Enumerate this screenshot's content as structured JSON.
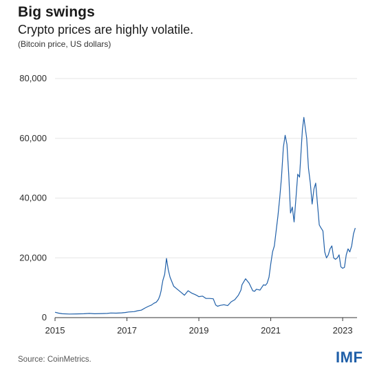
{
  "header": {
    "title": "Big swings",
    "subtitle": "Crypto prices are highly volatile.",
    "unit_note": "(Bitcoin price, US dollars)"
  },
  "footer": {
    "source": "Source: CoinMetrics.",
    "logo_text": "IMF"
  },
  "colors": {
    "line": "#1f5fa8",
    "grid": "#e6e6e6",
    "axis": "#333333",
    "logo": "#1f5fa8"
  },
  "chart_data": {
    "type": "line",
    "title": "Big swings",
    "subtitle": "Crypto prices are highly volatile.",
    "ylabel": "(Bitcoin price, US dollars)",
    "xlabel": "",
    "ylim": [
      0,
      80000
    ],
    "xlim": [
      2015.0,
      2023.4
    ],
    "grid": true,
    "yticks": [
      {
        "value": 0,
        "label": "0"
      },
      {
        "value": 20000,
        "label": "20,000"
      },
      {
        "value": 40000,
        "label": "40,000"
      },
      {
        "value": 60000,
        "label": "60,000"
      },
      {
        "value": 80000,
        "label": "80,000"
      }
    ],
    "xticks": [
      {
        "value": 2015,
        "label": "2015"
      },
      {
        "value": 2017,
        "label": "2017"
      },
      {
        "value": 2019,
        "label": "2019"
      },
      {
        "value": 2021,
        "label": "2021"
      },
      {
        "value": 2023,
        "label": "2023"
      }
    ],
    "series": [
      {
        "name": "Bitcoin price",
        "x": [
          2015.0,
          2015.1,
          2015.2,
          2015.4,
          2015.6,
          2015.8,
          2015.95,
          2016.1,
          2016.3,
          2016.45,
          2016.55,
          2016.7,
          2016.85,
          2016.95,
          2017.05,
          2017.2,
          2017.3,
          2017.4,
          2017.5,
          2017.6,
          2017.68,
          2017.75,
          2017.82,
          2017.88,
          2017.92,
          2017.95,
          2017.97,
          2018.0,
          2018.05,
          2018.1,
          2018.15,
          2018.2,
          2018.3,
          2018.4,
          2018.5,
          2018.6,
          2018.7,
          2018.8,
          2018.88,
          2018.95,
          2019.0,
          2019.1,
          2019.2,
          2019.3,
          2019.4,
          2019.47,
          2019.52,
          2019.6,
          2019.7,
          2019.8,
          2019.9,
          2020.0,
          2020.1,
          2020.17,
          2020.2,
          2020.3,
          2020.4,
          2020.5,
          2020.55,
          2020.6,
          2020.7,
          2020.8,
          2020.85,
          2020.9,
          2020.95,
          2021.0,
          2021.05,
          2021.1,
          2021.15,
          2021.2,
          2021.25,
          2021.3,
          2021.35,
          2021.4,
          2021.45,
          2021.5,
          2021.55,
          2021.6,
          2021.65,
          2021.7,
          2021.75,
          2021.8,
          2021.85,
          2021.88,
          2021.92,
          2022.0,
          2022.05,
          2022.1,
          2022.15,
          2022.2,
          2022.25,
          2022.3,
          2022.35,
          2022.4,
          2022.45,
          2022.5,
          2022.55,
          2022.6,
          2022.65,
          2022.7,
          2022.75,
          2022.8,
          2022.85,
          2022.9,
          2022.95,
          2023.0,
          2023.05,
          2023.1,
          2023.15,
          2023.2,
          2023.25,
          2023.3,
          2023.35
        ],
        "values": [
          1800,
          1500,
          1300,
          1200,
          1250,
          1300,
          1400,
          1300,
          1350,
          1400,
          1550,
          1500,
          1600,
          1700,
          1900,
          2000,
          2300,
          2500,
          3200,
          3800,
          4200,
          4800,
          5200,
          6200,
          7500,
          9000,
          10500,
          12500,
          14500,
          19800,
          16000,
          13500,
          10500,
          9500,
          8500,
          7500,
          9000,
          8200,
          7800,
          7400,
          7000,
          7200,
          6400,
          6400,
          6300,
          4200,
          3800,
          4100,
          4300,
          4000,
          5300,
          6000,
          7500,
          9200,
          11000,
          13000,
          11500,
          9000,
          8800,
          9500,
          9200,
          11000,
          10800,
          11500,
          13500,
          18000,
          22000,
          24000,
          29000,
          34000,
          40000,
          47000,
          57000,
          61000,
          58000,
          48000,
          35000,
          37000,
          32000,
          40000,
          48000,
          47000,
          57000,
          63000,
          67000,
          60000,
          50000,
          45000,
          38000,
          43000,
          45000,
          38000,
          31000,
          30000,
          29000,
          22000,
          20000,
          21000,
          23000,
          24000,
          20000,
          19500,
          20000,
          21000,
          17000,
          16500,
          16800,
          21000,
          23000,
          22000,
          24000,
          28000,
          30000
        ]
      }
    ]
  }
}
